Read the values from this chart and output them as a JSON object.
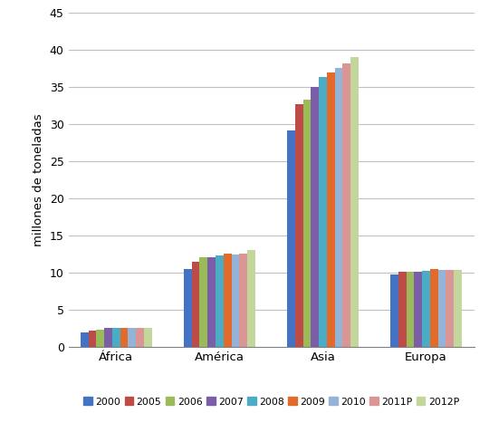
{
  "categories": [
    "África",
    "América",
    "Asia",
    "Europa"
  ],
  "years": [
    "2000",
    "2005",
    "2006",
    "2007",
    "2008",
    "2009",
    "2010",
    "2011P",
    "2012P"
  ],
  "colors": [
    "#4472C4",
    "#BE4B48",
    "#9BBB59",
    "#7A5EA7",
    "#4BACC6",
    "#E26B2C",
    "#95B3D7",
    "#D99695",
    "#C3D69B"
  ],
  "values": {
    "África": [
      1.9,
      2.2,
      2.3,
      2.5,
      2.6,
      2.6,
      2.6,
      2.6,
      2.6
    ],
    "América": [
      10.5,
      11.5,
      12.1,
      12.1,
      12.3,
      12.5,
      12.4,
      12.6,
      13.0
    ],
    "Asia": [
      29.2,
      32.7,
      33.3,
      35.0,
      36.4,
      37.0,
      37.5,
      38.2,
      39.0
    ],
    "Europa": [
      9.8,
      10.1,
      10.1,
      10.1,
      10.2,
      10.5,
      10.3,
      10.4,
      10.3
    ]
  },
  "ylabel": "millones de toneladas",
  "ylim": [
    0,
    45
  ],
  "yticks": [
    0,
    5,
    10,
    15,
    20,
    25,
    30,
    35,
    40,
    45
  ],
  "background_color": "#ffffff",
  "grid_color": "#c0c0c0"
}
